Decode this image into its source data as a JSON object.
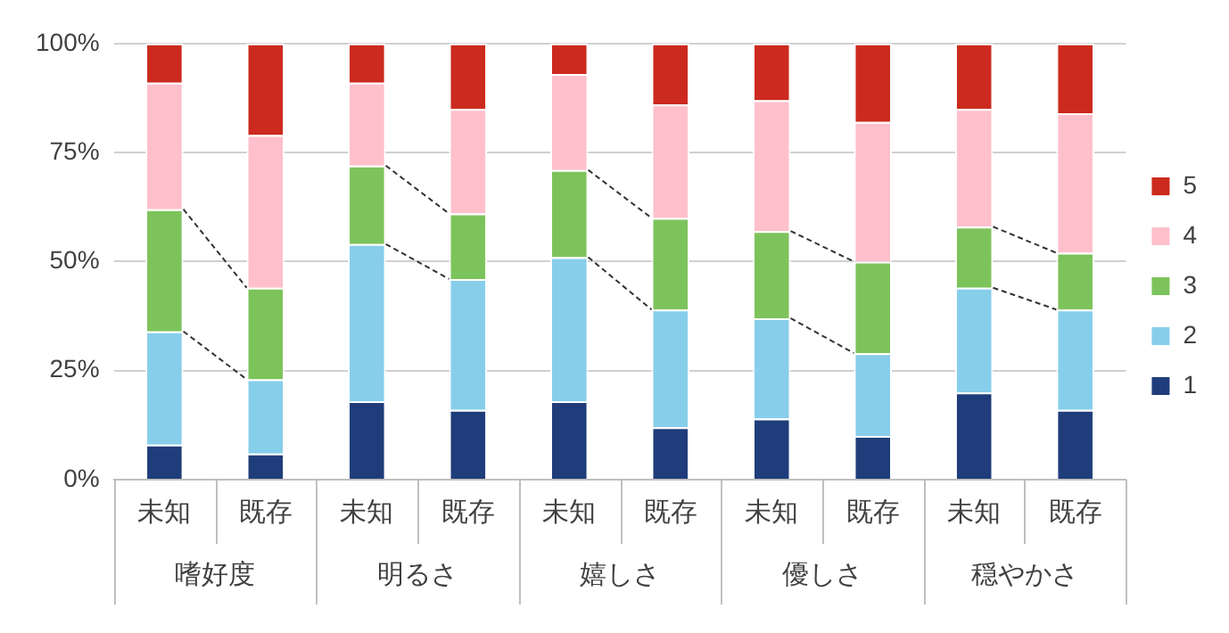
{
  "chart_data": {
    "type": "bar",
    "stacked": true,
    "categories": [
      "未知",
      "既存",
      "未知",
      "既存",
      "未知",
      "既存",
      "未知",
      "既存",
      "未知",
      "既存"
    ],
    "annotations": [
      "嗜好度",
      "明るさ",
      "嬉しさ",
      "優しさ",
      "穏やかさ"
    ],
    "series": [
      {
        "name": "1",
        "color": "#1f3d7a",
        "values": [
          8,
          6,
          18,
          16,
          18,
          12,
          14,
          10,
          20,
          16
        ]
      },
      {
        "name": "2",
        "color": "#87ceeb",
        "values": [
          26,
          17,
          36,
          30,
          33,
          27,
          23,
          19,
          24,
          23
        ]
      },
      {
        "name": "3",
        "color": "#7dc35b",
        "values": [
          28,
          21,
          18,
          15,
          20,
          21,
          20,
          21,
          14,
          13
        ]
      },
      {
        "name": "4",
        "color": "#ffc0cb",
        "values": [
          29,
          35,
          19,
          24,
          22,
          26,
          30,
          32,
          27,
          32
        ]
      },
      {
        "name": "5",
        "color": "#cc2a1e",
        "values": [
          9,
          21,
          9,
          15,
          7,
          14,
          13,
          18,
          15,
          16
        ]
      }
    ],
    "ylim": [
      0,
      100
    ],
    "yticks": [
      {
        "value": 0,
        "label": "0%"
      },
      {
        "value": 25,
        "label": "25%"
      },
      {
        "value": 50,
        "label": "50%"
      },
      {
        "value": 75,
        "label": "75%"
      },
      {
        "value": 100,
        "label": "100%"
      }
    ],
    "grid": "y",
    "legend": "right"
  }
}
